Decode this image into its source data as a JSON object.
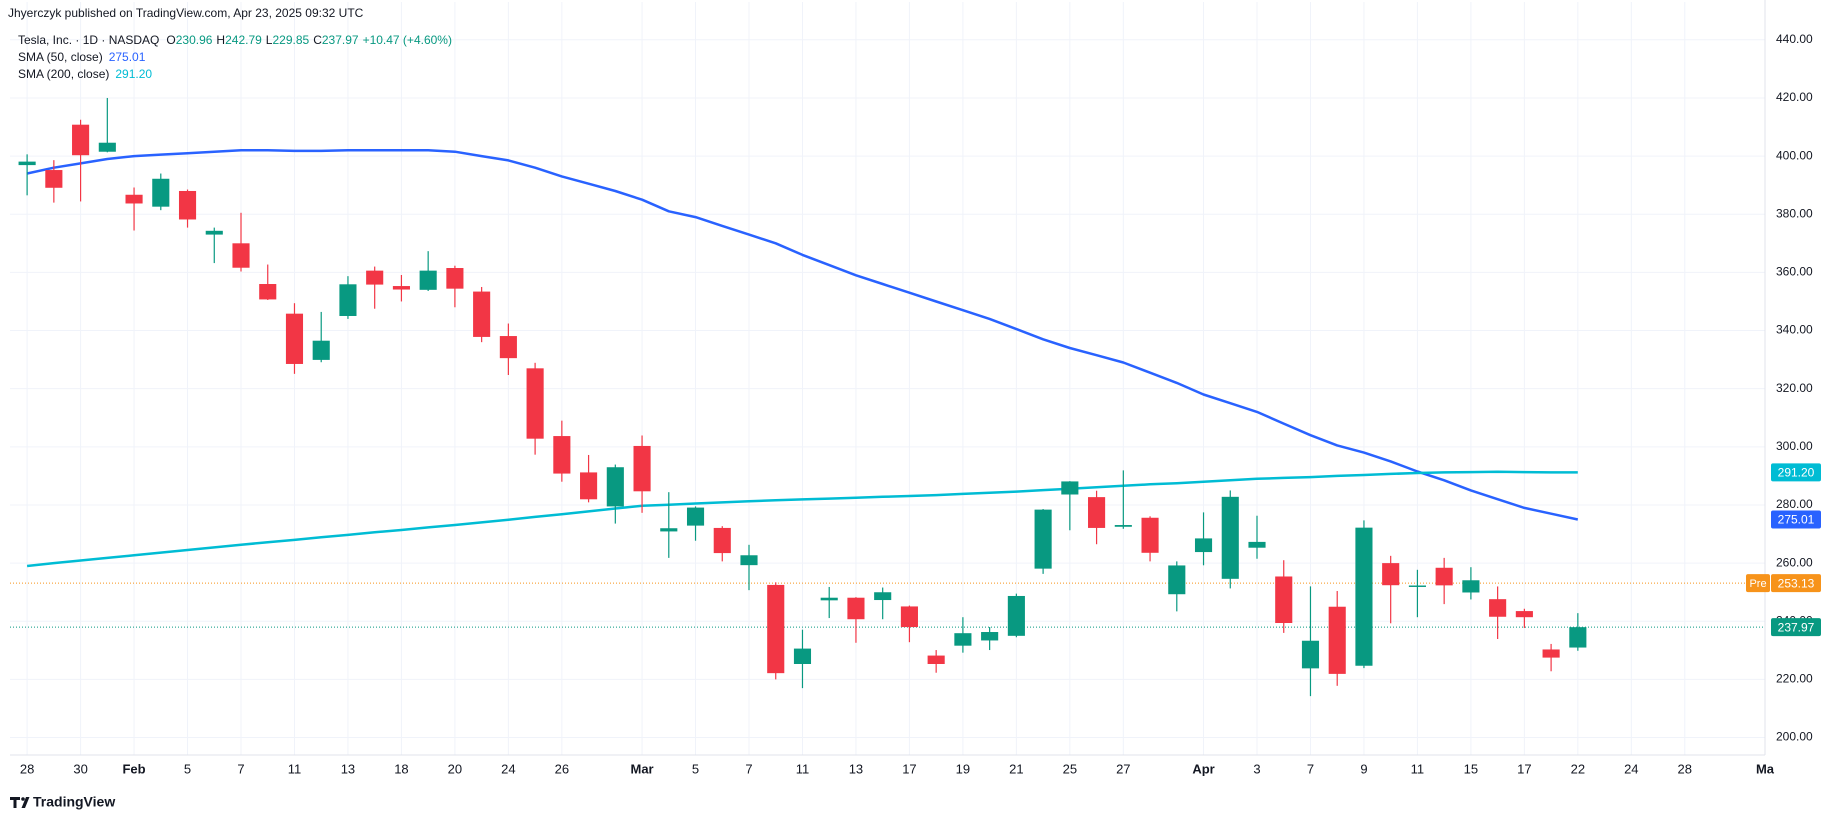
{
  "header": {
    "published": "Jhyerczyk published on TradingView.com, Apr 23, 2025 09:32 UTC"
  },
  "footer": {
    "brand": "TradingView"
  },
  "chart_data": {
    "type": "candlestick",
    "title": "Tesla, Inc. · 1D · NASDAQ",
    "quote_labels": [
      "O",
      "H",
      "L",
      "C"
    ],
    "change": "+10.47 (+4.60%)",
    "up_color": "#089981",
    "down_color": "#f23645",
    "open": [
      396.9,
      395.2,
      410.8,
      401.5,
      386.7,
      382.6,
      388.0,
      373.0,
      370.0,
      356.0,
      345.8,
      329.9,
      345.0,
      360.6,
      355.3,
      354.0,
      361.5,
      353.4,
      338.1,
      327.0,
      303.7,
      291.2,
      279.5,
      300.3,
      270.9,
      272.9,
      272.1,
      259.3,
      252.5,
      225.3,
      247.2,
      248.1,
      247.3,
      245.1,
      228.2,
      231.6,
      233.4,
      234.99,
      258.1,
      283.6,
      282.7,
      272.5,
      275.6,
      249.3,
      263.8,
      254.6,
      265.3,
      255.4,
      223.8,
      245.0,
      224.7,
      260.0,
      251.8,
      258.4,
      249.9,
      247.6,
      243.5,
      230.3,
      230.96
    ],
    "high": [
      400.6,
      398.6,
      412.5,
      419.99,
      389.2,
      394.0,
      388.5,
      375.4,
      380.5,
      362.7,
      349.4,
      346.4,
      358.7,
      362.0,
      359.1,
      367.3,
      362.3,
      354.98,
      342.4,
      328.9,
      309.0,
      297.2,
      293.9,
      303.9,
      284.4,
      279.5,
      272.7,
      266.3,
      253.4,
      237.1,
      251.8,
      248.3,
      251.6,
      245.4,
      230.1,
      241.4,
      238.0,
      249.5,
      278.6,
      288.2,
      284.9,
      291.9,
      276.1,
      260.6,
      277.45,
      284.99,
      276.3,
      261.0,
      252.0,
      250.4,
      274.7,
      262.5,
      257.7,
      261.8,
      258.6,
      251.97,
      244.3,
      232.2,
      242.79
    ],
    "low": [
      386.5,
      384.0,
      384.4,
      401.3,
      374.4,
      381.4,
      375.4,
      363.2,
      360.3,
      350.5,
      325.1,
      329.1,
      344.0,
      347.5,
      350.0,
      353.6,
      348.0,
      336.0,
      324.7,
      297.3,
      288.0,
      280.9,
      273.6,
      277.3,
      261.8,
      267.7,
      260.6,
      250.7,
      220.0,
      217.0,
      241.1,
      232.6,
      240.7,
      232.8,
      222.3,
      229.2,
      230.1,
      234.5,
      256.3,
      271.3,
      266.5,
      271.8,
      260.6,
      243.4,
      259.25,
      251.3,
      261.5,
      236.0,
      214.25,
      217.8,
      223.9,
      239.3,
      241.4,
      245.9,
      247.5,
      233.9,
      237.7,
      222.8,
      229.85
    ],
    "close": [
      398.1,
      389.1,
      400.3,
      404.6,
      383.7,
      392.2,
      378.2,
      374.3,
      361.6,
      350.7,
      328.5,
      336.5,
      355.9,
      355.8,
      354.1,
      360.6,
      354.4,
      337.8,
      330.5,
      302.8,
      290.8,
      281.95,
      292.98,
      284.7,
      272.0,
      279.1,
      263.45,
      262.7,
      222.15,
      230.6,
      248.1,
      240.7,
      249.98,
      238.0,
      225.3,
      235.9,
      236.3,
      248.7,
      278.4,
      288.1,
      272.1,
      273.1,
      263.55,
      259.2,
      268.5,
      282.8,
      267.3,
      239.4,
      233.3,
      221.9,
      272.2,
      252.4,
      252.3,
      252.35,
      254.1,
      241.55,
      241.4,
      227.5,
      237.97
    ],
    "indicators": [
      {
        "name": "SMA (50, close)",
        "color": "#2962ff",
        "value_label": "275.01",
        "values": [
          394,
          396,
          397.5,
          399,
          400,
          400.5,
          401,
          401.5,
          402,
          402,
          401.8,
          401.8,
          402,
          402,
          402,
          402,
          401.5,
          400,
          398.5,
          396,
          393,
          390.5,
          388,
          385,
          381,
          379,
          376,
          373,
          370,
          366,
          362.5,
          359,
          356,
          353,
          350,
          347,
          344,
          340.5,
          337,
          334,
          331.5,
          329,
          325.5,
          322,
          318,
          315,
          312,
          308,
          304,
          300.5,
          298,
          295,
          291.5,
          288.5,
          285,
          282,
          279,
          277,
          275.01
        ]
      },
      {
        "name": "SMA (200, close)",
        "color": "#00bcd4",
        "value_label": "291.20",
        "values": [
          259,
          260,
          260.9,
          261.8,
          262.7,
          263.6,
          264.5,
          265.4,
          266.3,
          267.2,
          268,
          268.9,
          269.7,
          270.6,
          271.4,
          272.3,
          273.1,
          274,
          274.9,
          275.9,
          276.8,
          277.8,
          278.8,
          279.7,
          280.1,
          280.5,
          280.9,
          281.3,
          281.6,
          281.9,
          282.2,
          282.5,
          282.8,
          283.1,
          283.4,
          283.8,
          284.2,
          284.6,
          285.1,
          285.6,
          286.1,
          286.6,
          287.1,
          287.5,
          288,
          288.5,
          289,
          289.3,
          289.6,
          290,
          290.3,
          290.7,
          291,
          291.2,
          291.3,
          291.4,
          291.3,
          291.2,
          291.2
        ]
      }
    ],
    "premarket": {
      "label": "Pre",
      "value": 253.13,
      "color": "#f7931a"
    },
    "xlim": [
      -0.64,
      65.0
    ],
    "xticks": [
      {
        "value": 0,
        "label": "28"
      },
      {
        "value": 2,
        "label": "30"
      },
      {
        "value": 4,
        "label": "Feb"
      },
      {
        "value": 6,
        "label": "5"
      },
      {
        "value": 8,
        "label": "7"
      },
      {
        "value": 10,
        "label": "11"
      },
      {
        "value": 12,
        "label": "13"
      },
      {
        "value": 14,
        "label": "18"
      },
      {
        "value": 16,
        "label": "20"
      },
      {
        "value": 18,
        "label": "24"
      },
      {
        "value": 20,
        "label": "26"
      },
      {
        "value": 23,
        "label": "Mar"
      },
      {
        "value": 25,
        "label": "5"
      },
      {
        "value": 27,
        "label": "7"
      },
      {
        "value": 29,
        "label": "11"
      },
      {
        "value": 31,
        "label": "13"
      },
      {
        "value": 33,
        "label": "17"
      },
      {
        "value": 35,
        "label": "19"
      },
      {
        "value": 37,
        "label": "21"
      },
      {
        "value": 39,
        "label": "25"
      },
      {
        "value": 41,
        "label": "27"
      },
      {
        "value": 44,
        "label": "Apr"
      },
      {
        "value": 46,
        "label": "3"
      },
      {
        "value": 48,
        "label": "7"
      },
      {
        "value": 50,
        "label": "9"
      },
      {
        "value": 52,
        "label": "11"
      },
      {
        "value": 54,
        "label": "15"
      },
      {
        "value": 56,
        "label": "17"
      },
      {
        "value": 58,
        "label": "22"
      },
      {
        "value": 60,
        "label": "24"
      },
      {
        "value": 62,
        "label": "28"
      },
      {
        "value": 65,
        "label": "Ma"
      }
    ],
    "ylim": [
      194,
      453
    ],
    "yticks": [
      {
        "value": 200,
        "label": "200.00"
      },
      {
        "value": 220,
        "label": "220.00"
      },
      {
        "value": 240,
        "label": "240.00"
      },
      {
        "value": 260,
        "label": "260.00"
      },
      {
        "value": 280,
        "label": "280.00"
      },
      {
        "value": 300,
        "label": "300.00"
      },
      {
        "value": 320,
        "label": "320.00"
      },
      {
        "value": 340,
        "label": "340.00"
      },
      {
        "value": 360,
        "label": "360.00"
      },
      {
        "value": 380,
        "label": "380.00"
      },
      {
        "value": 400,
        "label": "400.00"
      },
      {
        "value": 420,
        "label": "420.00"
      },
      {
        "value": 440,
        "label": "440.00"
      }
    ],
    "grid": true
  }
}
